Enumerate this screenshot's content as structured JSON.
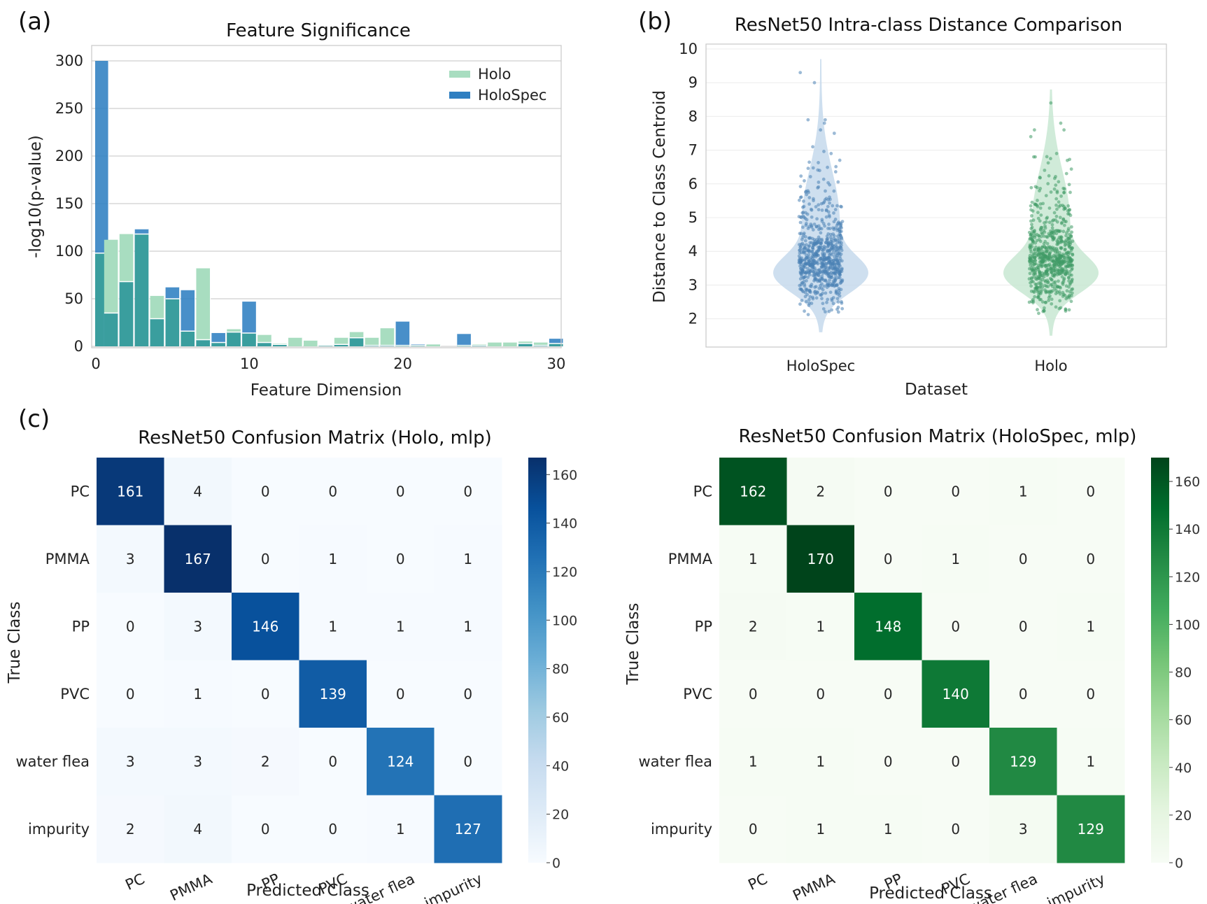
{
  "panel_labels": {
    "a": "(a)",
    "b": "(b)",
    "c": "(c)"
  },
  "chart_data": [
    {
      "id": "feature-significance",
      "type": "bar",
      "title": "Feature Significance",
      "xlabel": "Feature Dimension",
      "ylabel": "-log10(p-value)",
      "xlim": [
        0,
        30
      ],
      "ylim": [
        0,
        300
      ],
      "xticks": [
        "0",
        "10",
        "20",
        "30"
      ],
      "yticks": [
        "0",
        "50",
        "100",
        "150",
        "200",
        "250",
        "300"
      ],
      "grid": true,
      "legend": "top-right",
      "categories": [
        0,
        1,
        2,
        3,
        4,
        5,
        6,
        7,
        8,
        9,
        10,
        11,
        12,
        13,
        14,
        15,
        16,
        17,
        18,
        19,
        20,
        21,
        22,
        23,
        24,
        25,
        26,
        27,
        28,
        29,
        30
      ],
      "series": [
        {
          "name": "Holo",
          "color": "#a8ddc0",
          "values": [
            98,
            112,
            118,
            118,
            53,
            50,
            16,
            82,
            4,
            18,
            14,
            12,
            3,
            9,
            6,
            1,
            9,
            15,
            9,
            19,
            1,
            1,
            2,
            0,
            1,
            2,
            4,
            4,
            5,
            4,
            3
          ]
        },
        {
          "name": "HoloSpec",
          "color": "#2f7fc1",
          "values": [
            300,
            35,
            68,
            123,
            29,
            62,
            59,
            7,
            14,
            15,
            47,
            4,
            2,
            0,
            0,
            1,
            2,
            9,
            1,
            1,
            26,
            2,
            0,
            0,
            13,
            1,
            0,
            0,
            3,
            1,
            8
          ]
        }
      ],
      "overlap_color": "#3a9e9e"
    },
    {
      "id": "intra-class-distance",
      "type": "scatter",
      "subtype": "violin-with-strip",
      "title": "ResNet50 Intra-class Distance Comparison",
      "xlabel": "Dataset",
      "ylabel": "Distance to Class Centroid",
      "categories": [
        "HoloSpec",
        "Holo"
      ],
      "ylim": [
        1.2,
        10.2
      ],
      "yticks": [
        "2",
        "3",
        "4",
        "5",
        "6",
        "7",
        "8",
        "9",
        "10"
      ],
      "grid": true,
      "series": [
        {
          "name": "HoloSpec",
          "color": "#4a82b4",
          "fill": "#c5d9ec",
          "min": 1.6,
          "max": 9.7,
          "mode": 3.3,
          "median": 3.7,
          "q1": 3.2,
          "q3": 4.5,
          "outliers": [
            9.3,
            9.0,
            7.9,
            7.9,
            7.8,
            7.6,
            7.5,
            7.1,
            6.9,
            6.7
          ]
        },
        {
          "name": "Holo",
          "color": "#3f9a66",
          "fill": "#c8e8d2",
          "min": 1.5,
          "max": 8.8,
          "mode": 3.3,
          "median": 3.8,
          "q1": 3.2,
          "q3": 4.6,
          "outliers": [
            8.4,
            7.8,
            7.6,
            7.6,
            7.4,
            6.9,
            6.8,
            6.8
          ]
        }
      ]
    },
    {
      "id": "confusion-holo",
      "type": "heatmap",
      "title": "ResNet50 Confusion Matrix (Holo, mlp)",
      "xlabel": "Predicted Class",
      "ylabel": "True Class",
      "classes": [
        "PC",
        "PMMA",
        "PP",
        "PVC",
        "water flea",
        "impurity"
      ],
      "matrix": [
        [
          161,
          4,
          0,
          0,
          0,
          0
        ],
        [
          3,
          167,
          0,
          1,
          0,
          1
        ],
        [
          0,
          3,
          146,
          1,
          1,
          1
        ],
        [
          0,
          1,
          0,
          139,
          0,
          0
        ],
        [
          3,
          3,
          2,
          0,
          124,
          0
        ],
        [
          2,
          4,
          0,
          0,
          1,
          127
        ]
      ],
      "colormap": "Blues",
      "colorbar": {
        "min": 0,
        "max": 167,
        "ticks": [
          "0",
          "20",
          "40",
          "60",
          "80",
          "100",
          "120",
          "140",
          "160"
        ]
      }
    },
    {
      "id": "confusion-holospec",
      "type": "heatmap",
      "title": "ResNet50 Confusion Matrix (HoloSpec, mlp)",
      "xlabel": "Predicted Class",
      "ylabel": "True Class",
      "classes": [
        "PC",
        "PMMA",
        "PP",
        "PVC",
        "water flea",
        "impurity"
      ],
      "matrix": [
        [
          162,
          2,
          0,
          0,
          1,
          0
        ],
        [
          1,
          170,
          0,
          1,
          0,
          0
        ],
        [
          2,
          1,
          148,
          0,
          0,
          1
        ],
        [
          0,
          0,
          0,
          140,
          0,
          0
        ],
        [
          1,
          1,
          0,
          0,
          129,
          1
        ],
        [
          0,
          1,
          1,
          0,
          3,
          129
        ]
      ],
      "colormap": "Greens",
      "colorbar": {
        "min": 0,
        "max": 170,
        "ticks": [
          "0",
          "20",
          "40",
          "60",
          "80",
          "100",
          "120",
          "140",
          "160"
        ]
      }
    }
  ]
}
